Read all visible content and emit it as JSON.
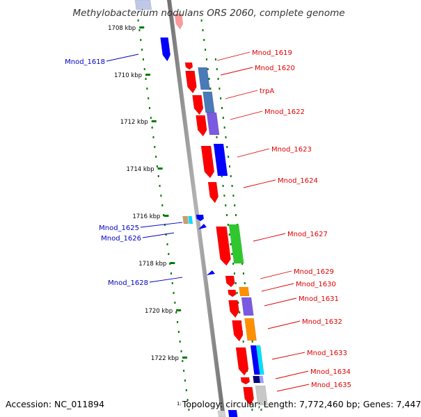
{
  "title": "Methylobacterium nodulans ORS 2060, complete genome",
  "ticks": [
    "1708 kbp",
    "1710 kbp",
    "1712 kbp",
    "1714 kbp",
    "1716 kbp",
    "1718 kbp",
    "1720 kbp",
    "1722 kbp"
  ],
  "genes_forward": [
    {
      "label": "Mnod_1619"
    },
    {
      "label": "Mnod_1620"
    },
    {
      "label": "trpA"
    },
    {
      "label": "Mnod_1622"
    },
    {
      "label": "Mnod_1623"
    },
    {
      "label": "Mnod_1624"
    },
    {
      "label": "Mnod_1627"
    },
    {
      "label": "Mnod_1629"
    },
    {
      "label": "Mnod_1630"
    },
    {
      "label": "Mnod_1631"
    },
    {
      "label": "Mnod_1632"
    },
    {
      "label": "Mnod_1633"
    },
    {
      "label": "Mnod_1634"
    },
    {
      "label": "Mnod_1635"
    }
  ],
  "genes_reverse": [
    {
      "label": "Mnod_1618"
    },
    {
      "label": "Mnod_1625"
    },
    {
      "label": "Mnod_1626"
    },
    {
      "label": "Mnod_1628"
    }
  ],
  "colors": {
    "forward_label": "#e00000",
    "reverse_label": "#0000c0",
    "forward_gene": "#ff0000",
    "reverse_gene": "#0000ff",
    "tick": "#007a00",
    "backbone": "#888888"
  },
  "footer": {
    "accession": "Accession: NC_011894",
    "topology_lead": "1:",
    "topology": "Topology: circular; Length: 7,772,460 bp; Genes: 7,447"
  }
}
